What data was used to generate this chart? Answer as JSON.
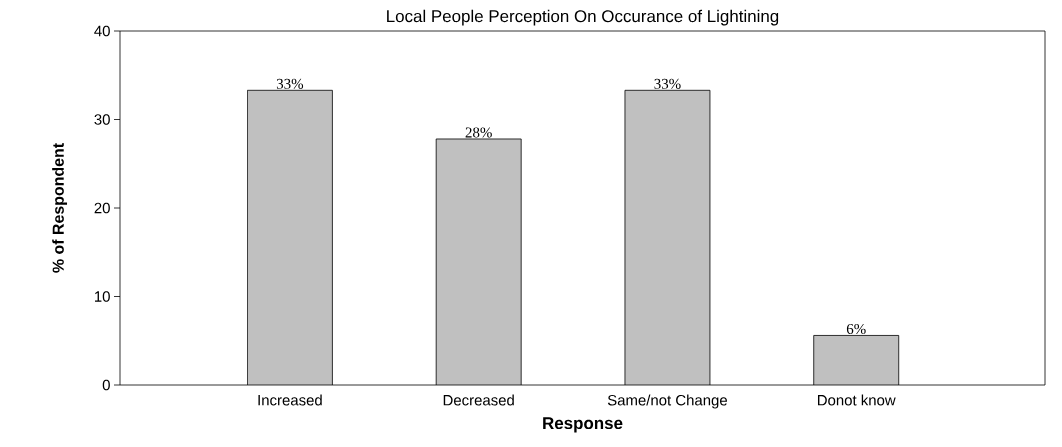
{
  "chart_data": {
    "type": "bar",
    "title": "Local People Perception On Occurance of Lightining",
    "xlabel": "Response",
    "ylabel": "% of Respondent",
    "categories": [
      "Increased",
      "Decreased",
      "Same/not Change",
      "Donot know"
    ],
    "values": [
      33.3,
      27.8,
      33.3,
      5.6
    ],
    "value_labels": [
      "33%",
      "28%",
      "33%",
      "6%"
    ],
    "color": "#c0c0c0",
    "ylim": [
      0,
      40
    ],
    "yticks": [
      0,
      10,
      20,
      30,
      40
    ],
    "grid": false
  }
}
